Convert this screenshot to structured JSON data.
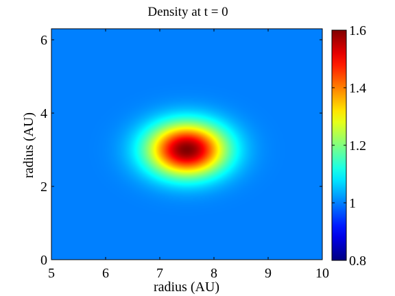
{
  "chart_data": {
    "type": "heatmap",
    "title": "Density at t = 0",
    "xlabel": "radius  (AU)",
    "ylabel": "radius  (AU)",
    "xlim": [
      5,
      10
    ],
    "ylim": [
      0,
      6.3
    ],
    "xticks": [
      5,
      6,
      7,
      8,
      9,
      10
    ],
    "yticks": [
      0,
      2,
      4,
      6
    ],
    "background_value": 1.0,
    "peak": {
      "x": 7.5,
      "y": 3.0,
      "value": 1.6,
      "sigma": 0.5
    },
    "colorbar": {
      "colormap": "jet",
      "range": [
        0.8,
        1.6
      ],
      "ticks": [
        "0.8",
        "1",
        "1.2",
        "1.4",
        "1.6"
      ],
      "tick_values": [
        0.8,
        1.0,
        1.2,
        1.4,
        1.6
      ]
    },
    "grid": false
  }
}
